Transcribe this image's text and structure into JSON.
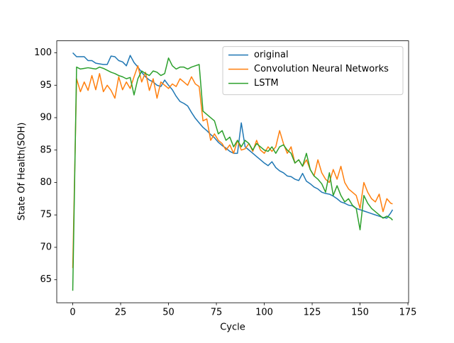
{
  "chart_data": {
    "type": "line",
    "xlabel": "Cycle",
    "ylabel": "State Of Health(SOH)",
    "x": [
      0,
      2,
      4,
      6,
      8,
      10,
      12,
      14,
      16,
      18,
      20,
      22,
      24,
      26,
      28,
      30,
      32,
      34,
      36,
      38,
      40,
      42,
      44,
      46,
      48,
      50,
      52,
      54,
      56,
      58,
      60,
      62,
      64,
      66,
      68,
      70,
      72,
      74,
      76,
      78,
      80,
      82,
      84,
      86,
      88,
      90,
      92,
      94,
      96,
      98,
      100,
      102,
      104,
      106,
      108,
      110,
      112,
      114,
      116,
      118,
      120,
      122,
      124,
      126,
      128,
      130,
      132,
      134,
      136,
      138,
      140,
      142,
      144,
      146,
      148,
      150,
      152,
      154,
      156,
      158,
      160,
      162,
      164,
      166,
      167
    ],
    "series": [
      {
        "name": "original",
        "color": "#1f77b4",
        "values": [
          100,
          99.4,
          99.4,
          99.4,
          98.8,
          98.8,
          98.4,
          98.3,
          98.2,
          98.2,
          99.5,
          99.4,
          98.8,
          98.6,
          98.0,
          99.6,
          98.5,
          97.8,
          97.0,
          96.3,
          95.8,
          95.5,
          95.0,
          94.8,
          95.8,
          95.0,
          94.3,
          93.3,
          92.5,
          92.2,
          91.8,
          90.8,
          89.9,
          89.2,
          88.5,
          88.0,
          87.4,
          86.9,
          86.2,
          85.7,
          85.3,
          84.8,
          84.5,
          84.5,
          89.2,
          85.5,
          85.0,
          84.5,
          84.0,
          83.5,
          83.0,
          82.6,
          83.2,
          82.3,
          81.8,
          81.5,
          81.0,
          80.9,
          80.5,
          80.3,
          81.4,
          80.2,
          79.8,
          79.3,
          79.0,
          78.5,
          78.3,
          78.2,
          77.9,
          77.5,
          77.0,
          76.8,
          76.5,
          76.4,
          76.0,
          75.8,
          75.6,
          75.4,
          75.2,
          75.0,
          74.8,
          74.6,
          74.5,
          75.3,
          75.8
        ]
      },
      {
        "name": "Convolution Neural Networks",
        "color": "#ff7f0e",
        "values": [
          66.8,
          96.0,
          94.0,
          95.5,
          94.2,
          96.5,
          94.3,
          96.8,
          94.0,
          95.0,
          94.2,
          93.0,
          96.3,
          94.3,
          95.5,
          94.5,
          96.3,
          98.0,
          95.5,
          97.0,
          94.2,
          96.0,
          93.0,
          95.5,
          95.0,
          94.5,
          95.2,
          94.8,
          96.0,
          95.5,
          95.0,
          96.3,
          95.2,
          94.8,
          89.5,
          89.8,
          86.5,
          87.5,
          86.5,
          86.0,
          85.0,
          85.8,
          84.5,
          86.5,
          85.0,
          85.2,
          86.0,
          84.8,
          86.5,
          85.0,
          84.5,
          85.5,
          84.8,
          85.5,
          88.0,
          86.0,
          84.5,
          85.5,
          83.0,
          83.5,
          82.5,
          83.5,
          82.0,
          81.0,
          83.5,
          81.5,
          80.5,
          80.0,
          82.0,
          80.5,
          82.5,
          80.0,
          79.0,
          78.5,
          78.0,
          76.0,
          80.0,
          78.5,
          77.5,
          77.0,
          78.2,
          75.5,
          77.5,
          76.8,
          76.7
        ]
      },
      {
        "name": "LSTM",
        "color": "#2ca02c",
        "values": [
          63.3,
          97.8,
          97.5,
          97.6,
          97.7,
          97.6,
          97.5,
          97.8,
          97.6,
          97.3,
          97.0,
          96.8,
          96.5,
          96.3,
          96.0,
          96.2,
          93.5,
          96.0,
          97.2,
          96.8,
          96.5,
          97.2,
          97.0,
          96.5,
          96.8,
          99.2,
          98.0,
          97.5,
          97.8,
          97.8,
          97.5,
          97.8,
          98.0,
          98.2,
          91.0,
          90.5,
          90.0,
          89.5,
          87.5,
          88.0,
          86.5,
          87.0,
          85.5,
          86.5,
          85.5,
          86.5,
          86.0,
          85.0,
          86.0,
          85.5,
          85.0,
          84.8,
          85.5,
          84.5,
          85.5,
          85.8,
          85.0,
          84.5,
          83.0,
          83.5,
          82.5,
          84.5,
          82.0,
          81.0,
          80.5,
          79.8,
          78.5,
          81.5,
          78.0,
          79.5,
          78.0,
          77.0,
          77.5,
          76.5,
          76.0,
          72.7,
          78.0,
          76.8,
          76.0,
          75.5,
          75.0,
          74.5,
          74.8,
          74.5,
          74.2
        ]
      }
    ],
    "xlim": [
      -8.35,
      175.35
    ],
    "xticks": [
      0,
      25,
      50,
      75,
      100,
      125,
      150,
      175
    ],
    "ylim": [
      61.45,
      101.85
    ],
    "yticks": [
      65,
      70,
      75,
      80,
      85,
      90,
      95,
      100
    ],
    "legend": "upper right"
  }
}
